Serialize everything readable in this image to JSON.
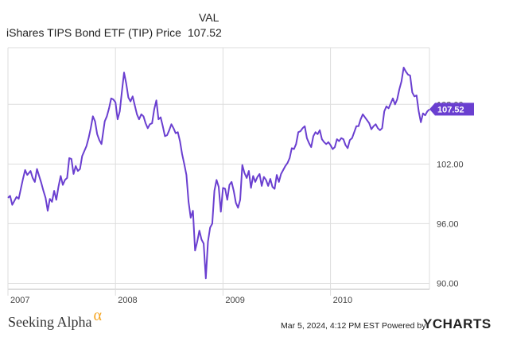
{
  "legend": {
    "header": "VAL",
    "series_name": "iShares TIPS Bond ETF (TIP) Price",
    "last_value": "107.52"
  },
  "footer": {
    "brand": "Seeking Alpha",
    "brand_symbol": "α",
    "timestamp": "Mar 5, 2024, 4:12 PM EST  Powered by",
    "logo_prefix": "Y",
    "logo_text": "CHARTS"
  },
  "colors": {
    "line": "#6a3fd0",
    "grid": "#dddddd",
    "brand_accent": "#f5a623"
  },
  "chart_data": {
    "type": "line",
    "title": "",
    "xlabel": "",
    "ylabel": "",
    "x_tick_labels": [
      "2007",
      "2008",
      "2009",
      "2010"
    ],
    "y_tick_labels": [
      "90.00",
      "96.00",
      "102.00",
      "108.00"
    ],
    "y_ticks": [
      90,
      96,
      102,
      108
    ],
    "ylim": [
      89.4,
      113.7
    ],
    "xlim": [
      2007.0,
      2010.92
    ],
    "grid": true,
    "last_value_label": "107.52",
    "series": [
      {
        "values": [
          [
            2007.0,
            98.6
          ],
          [
            2007.02,
            98.8
          ],
          [
            2007.04,
            97.9
          ],
          [
            2007.06,
            98.3
          ],
          [
            2007.08,
            98.7
          ],
          [
            2007.1,
            98.5
          ],
          [
            2007.12,
            99.5
          ],
          [
            2007.14,
            100.5
          ],
          [
            2007.16,
            101.4
          ],
          [
            2007.18,
            100.9
          ],
          [
            2007.21,
            101.3
          ],
          [
            2007.23,
            100.6
          ],
          [
            2007.25,
            100.2
          ],
          [
            2007.27,
            101.5
          ],
          [
            2007.29,
            100.8
          ],
          [
            2007.31,
            100.1
          ],
          [
            2007.33,
            99.3
          ],
          [
            2007.35,
            98.6
          ],
          [
            2007.37,
            97.3
          ],
          [
            2007.39,
            98.5
          ],
          [
            2007.41,
            98.2
          ],
          [
            2007.43,
            99.3
          ],
          [
            2007.45,
            98.4
          ],
          [
            2007.47,
            99.7
          ],
          [
            2007.49,
            100.8
          ],
          [
            2007.51,
            99.9
          ],
          [
            2007.53,
            100.4
          ],
          [
            2007.55,
            100.6
          ],
          [
            2007.57,
            102.6
          ],
          [
            2007.59,
            102.5
          ],
          [
            2007.61,
            101.0
          ],
          [
            2007.63,
            101.8
          ],
          [
            2007.65,
            101.3
          ],
          [
            2007.67,
            101.5
          ],
          [
            2007.69,
            102.8
          ],
          [
            2007.71,
            103.3
          ],
          [
            2007.73,
            103.8
          ],
          [
            2007.75,
            104.6
          ],
          [
            2007.77,
            105.6
          ],
          [
            2007.79,
            106.8
          ],
          [
            2007.81,
            106.3
          ],
          [
            2007.83,
            105.0
          ],
          [
            2007.85,
            104.4
          ],
          [
            2007.87,
            104.0
          ],
          [
            2007.9,
            106.3
          ],
          [
            2007.92,
            106.8
          ],
          [
            2007.94,
            107.6
          ],
          [
            2007.96,
            108.6
          ],
          [
            2007.98,
            108.5
          ],
          [
            2008.0,
            108.2
          ],
          [
            2008.02,
            106.5
          ],
          [
            2008.04,
            107.3
          ],
          [
            2008.06,
            109.3
          ],
          [
            2008.08,
            111.2
          ],
          [
            2008.1,
            110.1
          ],
          [
            2008.12,
            108.7
          ],
          [
            2008.14,
            108.3
          ],
          [
            2008.16,
            108.8
          ],
          [
            2008.18,
            107.9
          ],
          [
            2008.2,
            107.0
          ],
          [
            2008.22,
            106.5
          ],
          [
            2008.24,
            107.0
          ],
          [
            2008.26,
            106.8
          ],
          [
            2008.28,
            106.1
          ],
          [
            2008.3,
            105.6
          ],
          [
            2008.32,
            106.0
          ],
          [
            2008.34,
            106.1
          ],
          [
            2008.36,
            107.5
          ],
          [
            2008.38,
            108.4
          ],
          [
            2008.4,
            106.5
          ],
          [
            2008.42,
            106.7
          ],
          [
            2008.44,
            105.8
          ],
          [
            2008.46,
            104.8
          ],
          [
            2008.48,
            104.9
          ],
          [
            2008.5,
            105.4
          ],
          [
            2008.52,
            106.0
          ],
          [
            2008.54,
            105.6
          ],
          [
            2008.56,
            105.1
          ],
          [
            2008.58,
            105.2
          ],
          [
            2008.6,
            104.3
          ],
          [
            2008.62,
            103.0
          ],
          [
            2008.64,
            102.0
          ],
          [
            2008.66,
            100.9
          ],
          [
            2008.68,
            98.2
          ],
          [
            2008.7,
            96.6
          ],
          [
            2008.72,
            97.3
          ],
          [
            2008.74,
            93.3
          ],
          [
            2008.76,
            94.2
          ],
          [
            2008.78,
            95.3
          ],
          [
            2008.8,
            94.4
          ],
          [
            2008.82,
            94.0
          ],
          [
            2008.84,
            90.5
          ],
          [
            2008.86,
            94.2
          ],
          [
            2008.88,
            95.6
          ],
          [
            2008.9,
            96.0
          ],
          [
            2008.92,
            99.3
          ],
          [
            2008.94,
            100.4
          ],
          [
            2008.96,
            99.7
          ],
          [
            2008.98,
            97.2
          ],
          [
            2009.0,
            99.6
          ],
          [
            2009.02,
            99.5
          ],
          [
            2009.04,
            98.4
          ],
          [
            2009.06,
            99.9
          ],
          [
            2009.08,
            100.2
          ],
          [
            2009.1,
            99.3
          ],
          [
            2009.12,
            98.1
          ],
          [
            2009.14,
            97.6
          ],
          [
            2009.16,
            98.4
          ],
          [
            2009.18,
            101.9
          ],
          [
            2009.2,
            101.1
          ],
          [
            2009.22,
            100.6
          ],
          [
            2009.24,
            101.3
          ],
          [
            2009.26,
            99.6
          ],
          [
            2009.28,
            100.8
          ],
          [
            2009.3,
            100.2
          ],
          [
            2009.32,
            100.7
          ],
          [
            2009.34,
            101.0
          ],
          [
            2009.36,
            99.8
          ],
          [
            2009.38,
            100.7
          ],
          [
            2009.4,
            100.4
          ],
          [
            2009.42,
            99.8
          ],
          [
            2009.44,
            100.5
          ],
          [
            2009.46,
            99.7
          ],
          [
            2009.48,
            99.5
          ],
          [
            2009.5,
            100.9
          ],
          [
            2009.52,
            100.2
          ],
          [
            2009.54,
            101.0
          ],
          [
            2009.56,
            101.4
          ],
          [
            2009.58,
            101.8
          ],
          [
            2009.6,
            102.1
          ],
          [
            2009.62,
            102.6
          ],
          [
            2009.64,
            103.6
          ],
          [
            2009.66,
            103.5
          ],
          [
            2009.68,
            104.0
          ],
          [
            2009.7,
            105.2
          ],
          [
            2009.72,
            105.3
          ],
          [
            2009.74,
            105.6
          ],
          [
            2009.76,
            105.8
          ],
          [
            2009.78,
            104.6
          ],
          [
            2009.8,
            104.1
          ],
          [
            2009.82,
            103.7
          ],
          [
            2009.84,
            104.8
          ],
          [
            2009.86,
            105.2
          ],
          [
            2009.88,
            105.0
          ],
          [
            2009.9,
            105.4
          ],
          [
            2009.92,
            104.5
          ],
          [
            2009.94,
            104.2
          ],
          [
            2009.96,
            104.0
          ],
          [
            2009.98,
            104.2
          ],
          [
            2010.0,
            103.9
          ],
          [
            2010.02,
            103.5
          ],
          [
            2010.04,
            103.7
          ],
          [
            2010.06,
            104.5
          ],
          [
            2010.08,
            104.3
          ],
          [
            2010.1,
            104.6
          ],
          [
            2010.12,
            104.5
          ],
          [
            2010.14,
            103.9
          ],
          [
            2010.16,
            103.6
          ],
          [
            2010.18,
            104.4
          ],
          [
            2010.2,
            104.6
          ],
          [
            2010.22,
            105.2
          ],
          [
            2010.24,
            105.8
          ],
          [
            2010.26,
            105.8
          ],
          [
            2010.28,
            106.5
          ],
          [
            2010.3,
            107.0
          ],
          [
            2010.32,
            106.7
          ],
          [
            2010.34,
            106.4
          ],
          [
            2010.36,
            106.1
          ],
          [
            2010.38,
            105.5
          ],
          [
            2010.4,
            105.8
          ],
          [
            2010.42,
            106.0
          ],
          [
            2010.44,
            105.6
          ],
          [
            2010.46,
            105.4
          ],
          [
            2010.48,
            105.6
          ],
          [
            2010.5,
            107.3
          ],
          [
            2010.52,
            107.8
          ],
          [
            2010.54,
            107.6
          ],
          [
            2010.56,
            108.1
          ],
          [
            2010.58,
            108.6
          ],
          [
            2010.6,
            108.0
          ],
          [
            2010.62,
            108.5
          ],
          [
            2010.64,
            109.5
          ],
          [
            2010.66,
            110.3
          ],
          [
            2010.68,
            111.7
          ],
          [
            2010.7,
            111.3
          ],
          [
            2010.72,
            111.0
          ],
          [
            2010.74,
            110.9
          ],
          [
            2010.76,
            109.2
          ],
          [
            2010.78,
            108.8
          ],
          [
            2010.8,
            108.9
          ],
          [
            2010.82,
            107.3
          ],
          [
            2010.84,
            106.2
          ],
          [
            2010.86,
            107.1
          ],
          [
            2010.88,
            106.9
          ],
          [
            2010.9,
            107.3
          ],
          [
            2010.92,
            107.5
          ]
        ]
      }
    ]
  }
}
